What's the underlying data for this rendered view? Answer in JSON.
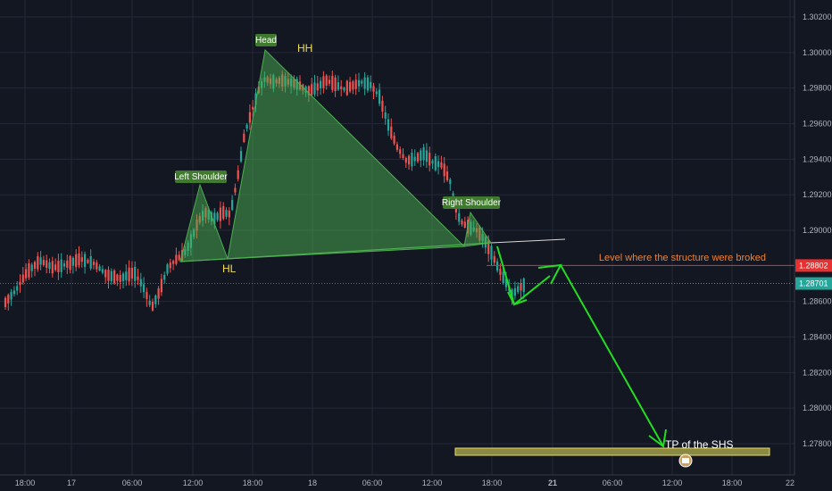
{
  "chart_data": {
    "type": "candlestick",
    "y_ticks": [
      "1.30200",
      "1.30000",
      "1.29800",
      "1.29600",
      "1.29400",
      "1.29200",
      "1.29000",
      "1.28600",
      "1.28400",
      "1.28200",
      "1.28000",
      "1.27800"
    ],
    "x_ticks": [
      "18:00",
      "17",
      "06:00",
      "12:00",
      "18:00",
      "18",
      "06:00",
      "12:00",
      "18:00",
      "21",
      "06:00",
      "12:00",
      "18:00",
      "22"
    ],
    "x_ticks_bold": [
      "21"
    ],
    "ylim": [
      1.2766,
      1.3032
    ],
    "grid": true,
    "price_levels": [
      {
        "label": "1.28802",
        "value": 1.28802,
        "color": "#e83030",
        "style": "solid"
      },
      {
        "label": "1.28701",
        "value": 1.28701,
        "color": "#26a69a",
        "style": "dotted"
      }
    ],
    "annotations": {
      "left_shoulder": "Left Shoulder",
      "head": "Head",
      "hh": "HH",
      "right_shoulder": "Right Shoulder",
      "hl": "HL",
      "broken_level": "Level where the structure were broked",
      "target": "TP of the SHS"
    },
    "colors": {
      "background": "#131722",
      "up": "#26a69a",
      "down": "#ef5350",
      "pattern_fill": "#4caf50",
      "arrow": "#22dd22",
      "label_yellow": "#f0e050",
      "label_orange": "#f08030"
    }
  }
}
